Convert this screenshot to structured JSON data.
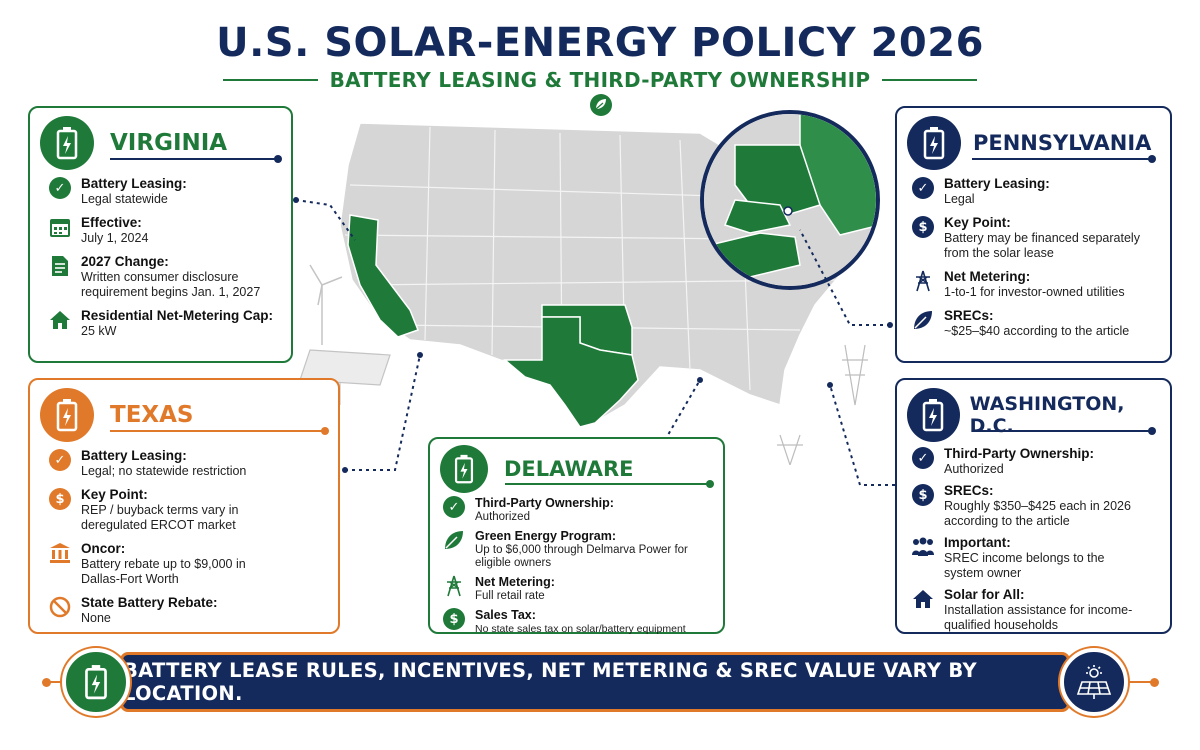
{
  "header": {
    "title": "U.S. SOLAR-ENERGY POLICY 2026",
    "subtitle": "BATTERY LEASING & THIRD-PARTY OWNERSHIP"
  },
  "colors": {
    "navy": "#142a5c",
    "green": "#1f7a3a",
    "orange": "#e07a2a",
    "map_gray": "#d6d6d6"
  },
  "virginia": {
    "state": "VIRGINIA",
    "icon": "battery-icon",
    "items": [
      {
        "icon": "check-circle-icon",
        "label": "Battery Leasing:",
        "value": "Legal statewide"
      },
      {
        "icon": "calendar-icon",
        "label": "Effective:",
        "value": "July 1, 2024"
      },
      {
        "icon": "document-icon",
        "label": "2027 Change:",
        "value": "Written consumer disclosure requirement begins Jan. 1, 2027"
      },
      {
        "icon": "house-icon",
        "label": "Residential Net-Metering Cap:",
        "value": "25 kW"
      }
    ]
  },
  "texas": {
    "state": "TEXAS",
    "icon": "battery-icon",
    "items": [
      {
        "icon": "check-circle-icon",
        "label": "Battery Leasing:",
        "value": "Legal; no statewide restriction"
      },
      {
        "icon": "dollar-icon",
        "label": "Key Point:",
        "value": "REP / buyback terms vary in deregulated ERCOT market"
      },
      {
        "icon": "bank-icon",
        "label": "Oncor:",
        "value": "Battery rebate up to $9,000 in Dallas-Fort Worth"
      },
      {
        "icon": "prohibited-icon",
        "label": "State Battery Rebate:",
        "value": "None"
      }
    ]
  },
  "delaware": {
    "state": "DELAWARE",
    "icon": "battery-icon",
    "items": [
      {
        "icon": "check-circle-icon",
        "label": "Third-Party Ownership:",
        "value": "Authorized"
      },
      {
        "icon": "leaf-icon",
        "label": "Green Energy Program:",
        "value": "Up to $6,000 through Delmarva Power for eligible owners"
      },
      {
        "icon": "power-tower-icon",
        "label": "Net Metering:",
        "value": "Full retail rate"
      },
      {
        "icon": "dollar-icon",
        "label": "Sales Tax:",
        "value": "No state sales tax on solar/battery equipment"
      }
    ]
  },
  "pennsylvania": {
    "state": "PENNSYLVANIA",
    "icon": "battery-icon",
    "items": [
      {
        "icon": "check-circle-icon",
        "label": "Battery Leasing:",
        "value": "Legal"
      },
      {
        "icon": "dollar-icon",
        "label": "Key Point:",
        "value": "Battery may be financed separately from the solar lease"
      },
      {
        "icon": "power-tower-icon",
        "label": "Net Metering:",
        "value": "1-to-1 for investor-owned utilities"
      },
      {
        "icon": "leaf-icon",
        "label": "SRECs:",
        "value": "~$25–$40 according to the article"
      }
    ]
  },
  "dc": {
    "state": "WASHINGTON, D.C.",
    "icon": "battery-icon",
    "items": [
      {
        "icon": "check-circle-icon",
        "label": "Third-Party Ownership:",
        "value": "Authorized"
      },
      {
        "icon": "dollar-icon",
        "label": "SRECs:",
        "value": "Roughly $350–$425 each in 2026 according to the article"
      },
      {
        "icon": "people-icon",
        "label": "Important:",
        "value": "SREC income belongs to the system owner"
      },
      {
        "icon": "house-icon",
        "label": "Solar for All:",
        "value": "Installation assistance for income-qualified households"
      }
    ]
  },
  "banner": {
    "text": "BATTERY LEASE RULES, INCENTIVES, NET METERING & SREC VALUE VARY BY LOCATION.",
    "left_icon": "battery-icon",
    "right_icon": "solar-panel-icon"
  },
  "map": {
    "highlighted_states": [
      "California",
      "Texas",
      "Oklahoma",
      "Virginia",
      "Pennsylvania",
      "Delaware",
      "New York",
      "Vermont",
      "Maine"
    ]
  }
}
